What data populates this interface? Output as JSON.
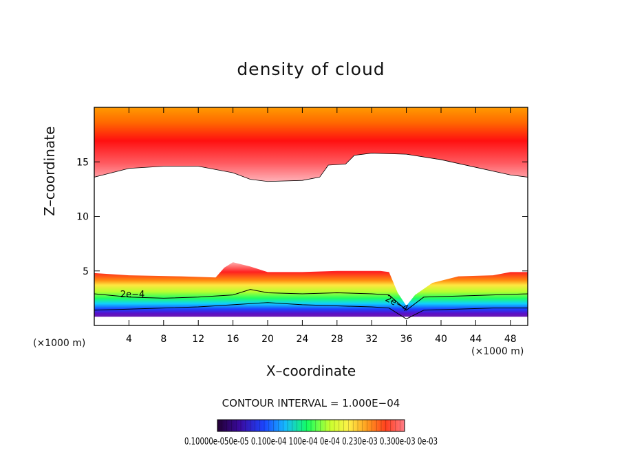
{
  "chart_data": {
    "type": "heatmap",
    "title": "density of cloud",
    "xlabel": "X–coordinate",
    "ylabel": "Z–coordinate",
    "x_unit": "(×1000 m)",
    "xlim": [
      0,
      50
    ],
    "ylim": [
      0,
      20
    ],
    "x_ticks": [
      4,
      8,
      12,
      16,
      20,
      24,
      28,
      32,
      36,
      40,
      44,
      48
    ],
    "y_ticks": [
      5,
      10,
      15
    ],
    "contour_interval_text": "CONTOUR INTERVAL = 1.000E−04",
    "contour_labels": [
      "2e−4",
      "2e−4"
    ],
    "colorbar_text": "0.10000e-050e-05 0.100e-04 100e-04 0e-04 0.230e-03 0.300e-03 0e-03",
    "colorbar_colors": [
      "#220033",
      "#3a0aa0",
      "#1b46ff",
      "#16b8ff",
      "#14ff60",
      "#c8ff2e",
      "#fff048",
      "#ff9c1e",
      "#ff3f1e",
      "#ff7d88"
    ],
    "upper_layer": {
      "top_z": 20.0,
      "base_z": [
        [
          0,
          13.6
        ],
        [
          4,
          14.4
        ],
        [
          8,
          14.6
        ],
        [
          12,
          14.6
        ],
        [
          16,
          14.0
        ],
        [
          18,
          13.4
        ],
        [
          20,
          13.2
        ],
        [
          24,
          13.3
        ],
        [
          26,
          13.6
        ],
        [
          27,
          14.7
        ],
        [
          29,
          14.8
        ],
        [
          30,
          15.6
        ],
        [
          32,
          15.8
        ],
        [
          36,
          15.7
        ],
        [
          40,
          15.2
        ],
        [
          44,
          14.5
        ],
        [
          48,
          13.8
        ],
        [
          50,
          13.6
        ]
      ]
    },
    "lower_layer": {
      "top_z": [
        [
          0,
          4.8
        ],
        [
          4,
          4.6
        ],
        [
          10,
          4.5
        ],
        [
          14,
          4.4
        ],
        [
          15,
          5.3
        ],
        [
          16,
          5.8
        ],
        [
          18,
          5.4
        ],
        [
          20,
          4.9
        ],
        [
          24,
          4.9
        ],
        [
          28,
          5.0
        ],
        [
          33,
          5.0
        ],
        [
          34,
          4.9
        ],
        [
          35,
          3.0
        ],
        [
          36,
          1.8
        ],
        [
          37,
          2.8
        ],
        [
          39,
          3.9
        ],
        [
          42,
          4.5
        ],
        [
          46,
          4.6
        ],
        [
          48,
          4.9
        ],
        [
          50,
          4.9
        ]
      ],
      "bottom_z": 0.8
    }
  }
}
